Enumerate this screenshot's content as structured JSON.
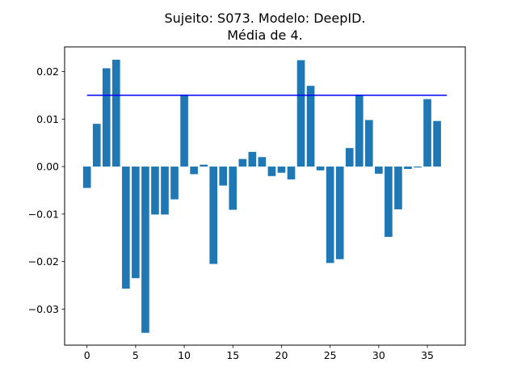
{
  "chart_data": {
    "type": "bar",
    "title_lines": [
      "Sujeito: S073. Modelo: DeepID.",
      "Média de 4."
    ],
    "xlabel": "",
    "ylabel": "",
    "xlim": [
      -2.3,
      38.9
    ],
    "ylim": [
      -0.0376,
      0.0252
    ],
    "x_ticks": [
      0,
      5,
      10,
      15,
      20,
      25,
      30,
      35
    ],
    "x_tick_labels": [
      "0",
      "5",
      "10",
      "15",
      "20",
      "25",
      "30",
      "35"
    ],
    "y_ticks": [
      -0.03,
      -0.02,
      -0.01,
      0.0,
      0.01,
      0.02
    ],
    "y_tick_labels": [
      "−0.03",
      "−0.02",
      "−0.01",
      "0.00",
      "0.01",
      "0.02"
    ],
    "grid": false,
    "bar_color": "#1f77b4",
    "x": [
      0,
      1,
      2,
      3,
      4,
      5,
      6,
      7,
      8,
      9,
      10,
      11,
      12,
      13,
      14,
      15,
      16,
      17,
      18,
      19,
      20,
      21,
      22,
      23,
      24,
      25,
      26,
      27,
      28,
      29,
      30,
      31,
      32,
      33,
      34,
      35,
      36
    ],
    "values": [
      -0.0045,
      0.009,
      0.0207,
      0.0225,
      -0.0257,
      -0.0235,
      -0.035,
      -0.0101,
      -0.0101,
      -0.0069,
      0.0151,
      -0.0016,
      0.0004,
      -0.0205,
      -0.004,
      -0.0091,
      0.0016,
      0.0031,
      0.002,
      -0.002,
      -0.0013,
      -0.0027,
      0.0224,
      0.017,
      -0.0008,
      -0.0203,
      -0.0195,
      0.0039,
      0.0151,
      0.0098,
      -0.0015,
      -0.0148,
      -0.009,
      -0.0005,
      -0.0002,
      0.0142,
      0.0096
    ],
    "reference_line": {
      "y": 0.015,
      "x_start": 0,
      "x_end": 37,
      "color": "#0000ff"
    }
  }
}
